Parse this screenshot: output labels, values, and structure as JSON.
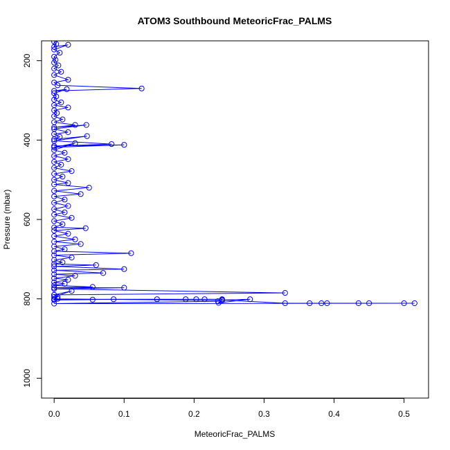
{
  "chart_data": {
    "type": "scatter",
    "title": "ATOM3 Southbound MeteoricFrac_PALMS",
    "xlabel": "MeteoricFrac_PALMS",
    "ylabel": "Pressure (mbar)",
    "xlim": [
      -0.018,
      0.535
    ],
    "ylim": [
      1050,
      150
    ],
    "y_inverted": true,
    "grid": false,
    "x_ticks": [
      "0.0",
      "0.1",
      "0.2",
      "0.3",
      "0.4",
      "0.5"
    ],
    "y_ticks": [
      "200",
      "400",
      "600",
      "800",
      "1000"
    ],
    "series": [
      {
        "color": "#0000ff",
        "marker": "open-circle",
        "connected": true,
        "points": [
          [
            0.0,
            152
          ],
          [
            0.003,
            158
          ],
          [
            0.0,
            165
          ],
          [
            0.02,
            160
          ],
          [
            0.0,
            172
          ],
          [
            0.008,
            180
          ],
          [
            0.0,
            190
          ],
          [
            0.002,
            198
          ],
          [
            0.0,
            205
          ],
          [
            0.006,
            212
          ],
          [
            0.0,
            220
          ],
          [
            0.01,
            228
          ],
          [
            0.0,
            236
          ],
          [
            0.02,
            248
          ],
          [
            0.0,
            255
          ],
          [
            0.005,
            262
          ],
          [
            0.125,
            270
          ],
          [
            0.0,
            276
          ],
          [
            0.018,
            272
          ],
          [
            0.0,
            282
          ],
          [
            0.003,
            290
          ],
          [
            0.0,
            298
          ],
          [
            0.01,
            305
          ],
          [
            0.0,
            312
          ],
          [
            0.02,
            318
          ],
          [
            0.0,
            325
          ],
          [
            0.004,
            332
          ],
          [
            0.0,
            340
          ],
          [
            0.012,
            348
          ],
          [
            0.0,
            355
          ],
          [
            0.03,
            362
          ],
          [
            0.0,
            368
          ],
          [
            0.046,
            362
          ],
          [
            0.0,
            372
          ],
          [
            0.02,
            380
          ],
          [
            0.0,
            385
          ],
          [
            0.008,
            392
          ],
          [
            0.0,
            398
          ],
          [
            0.047,
            390
          ],
          [
            0.0,
            402
          ],
          [
            0.082,
            410
          ],
          [
            0.0,
            415
          ],
          [
            0.1,
            412
          ],
          [
            0.0,
            418
          ],
          [
            0.03,
            408
          ],
          [
            0.0,
            425
          ],
          [
            0.015,
            432
          ],
          [
            0.0,
            440
          ],
          [
            0.02,
            448
          ],
          [
            0.0,
            455
          ],
          [
            0.01,
            462
          ],
          [
            0.0,
            470
          ],
          [
            0.025,
            478
          ],
          [
            0.0,
            485
          ],
          [
            0.012,
            492
          ],
          [
            0.0,
            500
          ],
          [
            0.02,
            508
          ],
          [
            0.0,
            512
          ],
          [
            0.05,
            520
          ],
          [
            0.0,
            528
          ],
          [
            0.038,
            536
          ],
          [
            0.0,
            542
          ],
          [
            0.015,
            550
          ],
          [
            0.0,
            558
          ],
          [
            0.02,
            566
          ],
          [
            0.0,
            574
          ],
          [
            0.015,
            582
          ],
          [
            0.0,
            588
          ],
          [
            0.025,
            596
          ],
          [
            0.0,
            604
          ],
          [
            0.012,
            612
          ],
          [
            0.0,
            620
          ],
          [
            0.045,
            622
          ],
          [
            0.0,
            628
          ],
          [
            0.02,
            636
          ],
          [
            0.0,
            642
          ],
          [
            0.03,
            650
          ],
          [
            0.0,
            656
          ],
          [
            0.038,
            662
          ],
          [
            0.0,
            668
          ],
          [
            0.015,
            675
          ],
          [
            0.0,
            680
          ],
          [
            0.11,
            685
          ],
          [
            0.0,
            690
          ],
          [
            0.025,
            696
          ],
          [
            0.0,
            702
          ],
          [
            0.012,
            708
          ],
          [
            0.0,
            712
          ],
          [
            0.06,
            715
          ],
          [
            0.0,
            718
          ],
          [
            0.1,
            725
          ],
          [
            0.0,
            728
          ],
          [
            0.07,
            735
          ],
          [
            0.0,
            738
          ],
          [
            0.03,
            742
          ],
          [
            0.0,
            748
          ],
          [
            0.02,
            752
          ],
          [
            0.0,
            758
          ],
          [
            0.015,
            762
          ],
          [
            0.0,
            766
          ],
          [
            0.055,
            770
          ],
          [
            0.0,
            772
          ],
          [
            0.1,
            772
          ],
          [
            0.0,
            775
          ],
          [
            0.33,
            785
          ],
          [
            0.0,
            790
          ],
          [
            0.025,
            780
          ],
          [
            0.0,
            795
          ],
          [
            0.005,
            800
          ],
          [
            0.0,
            802
          ],
          [
            0.055,
            802
          ],
          [
            0.0,
            803
          ],
          [
            0.085,
            801
          ],
          [
            0.147,
            801
          ],
          [
            0.188,
            801
          ],
          [
            0.203,
            801
          ],
          [
            0.215,
            801
          ],
          [
            0.24,
            801
          ],
          [
            0.235,
            810
          ],
          [
            0.28,
            801
          ],
          [
            0.24,
            803
          ],
          [
            0.33,
            811
          ],
          [
            0.365,
            811
          ],
          [
            0.382,
            811
          ],
          [
            0.39,
            811
          ],
          [
            0.435,
            811
          ],
          [
            0.45,
            811
          ],
          [
            0.5,
            811
          ],
          [
            0.515,
            811
          ],
          [
            0.0,
            812
          ],
          [
            0.234,
            806
          ],
          [
            0.24,
            804
          ],
          [
            0.0,
            800
          ],
          [
            0.005,
            795
          ],
          [
            0.0,
            790
          ]
        ]
      }
    ]
  }
}
